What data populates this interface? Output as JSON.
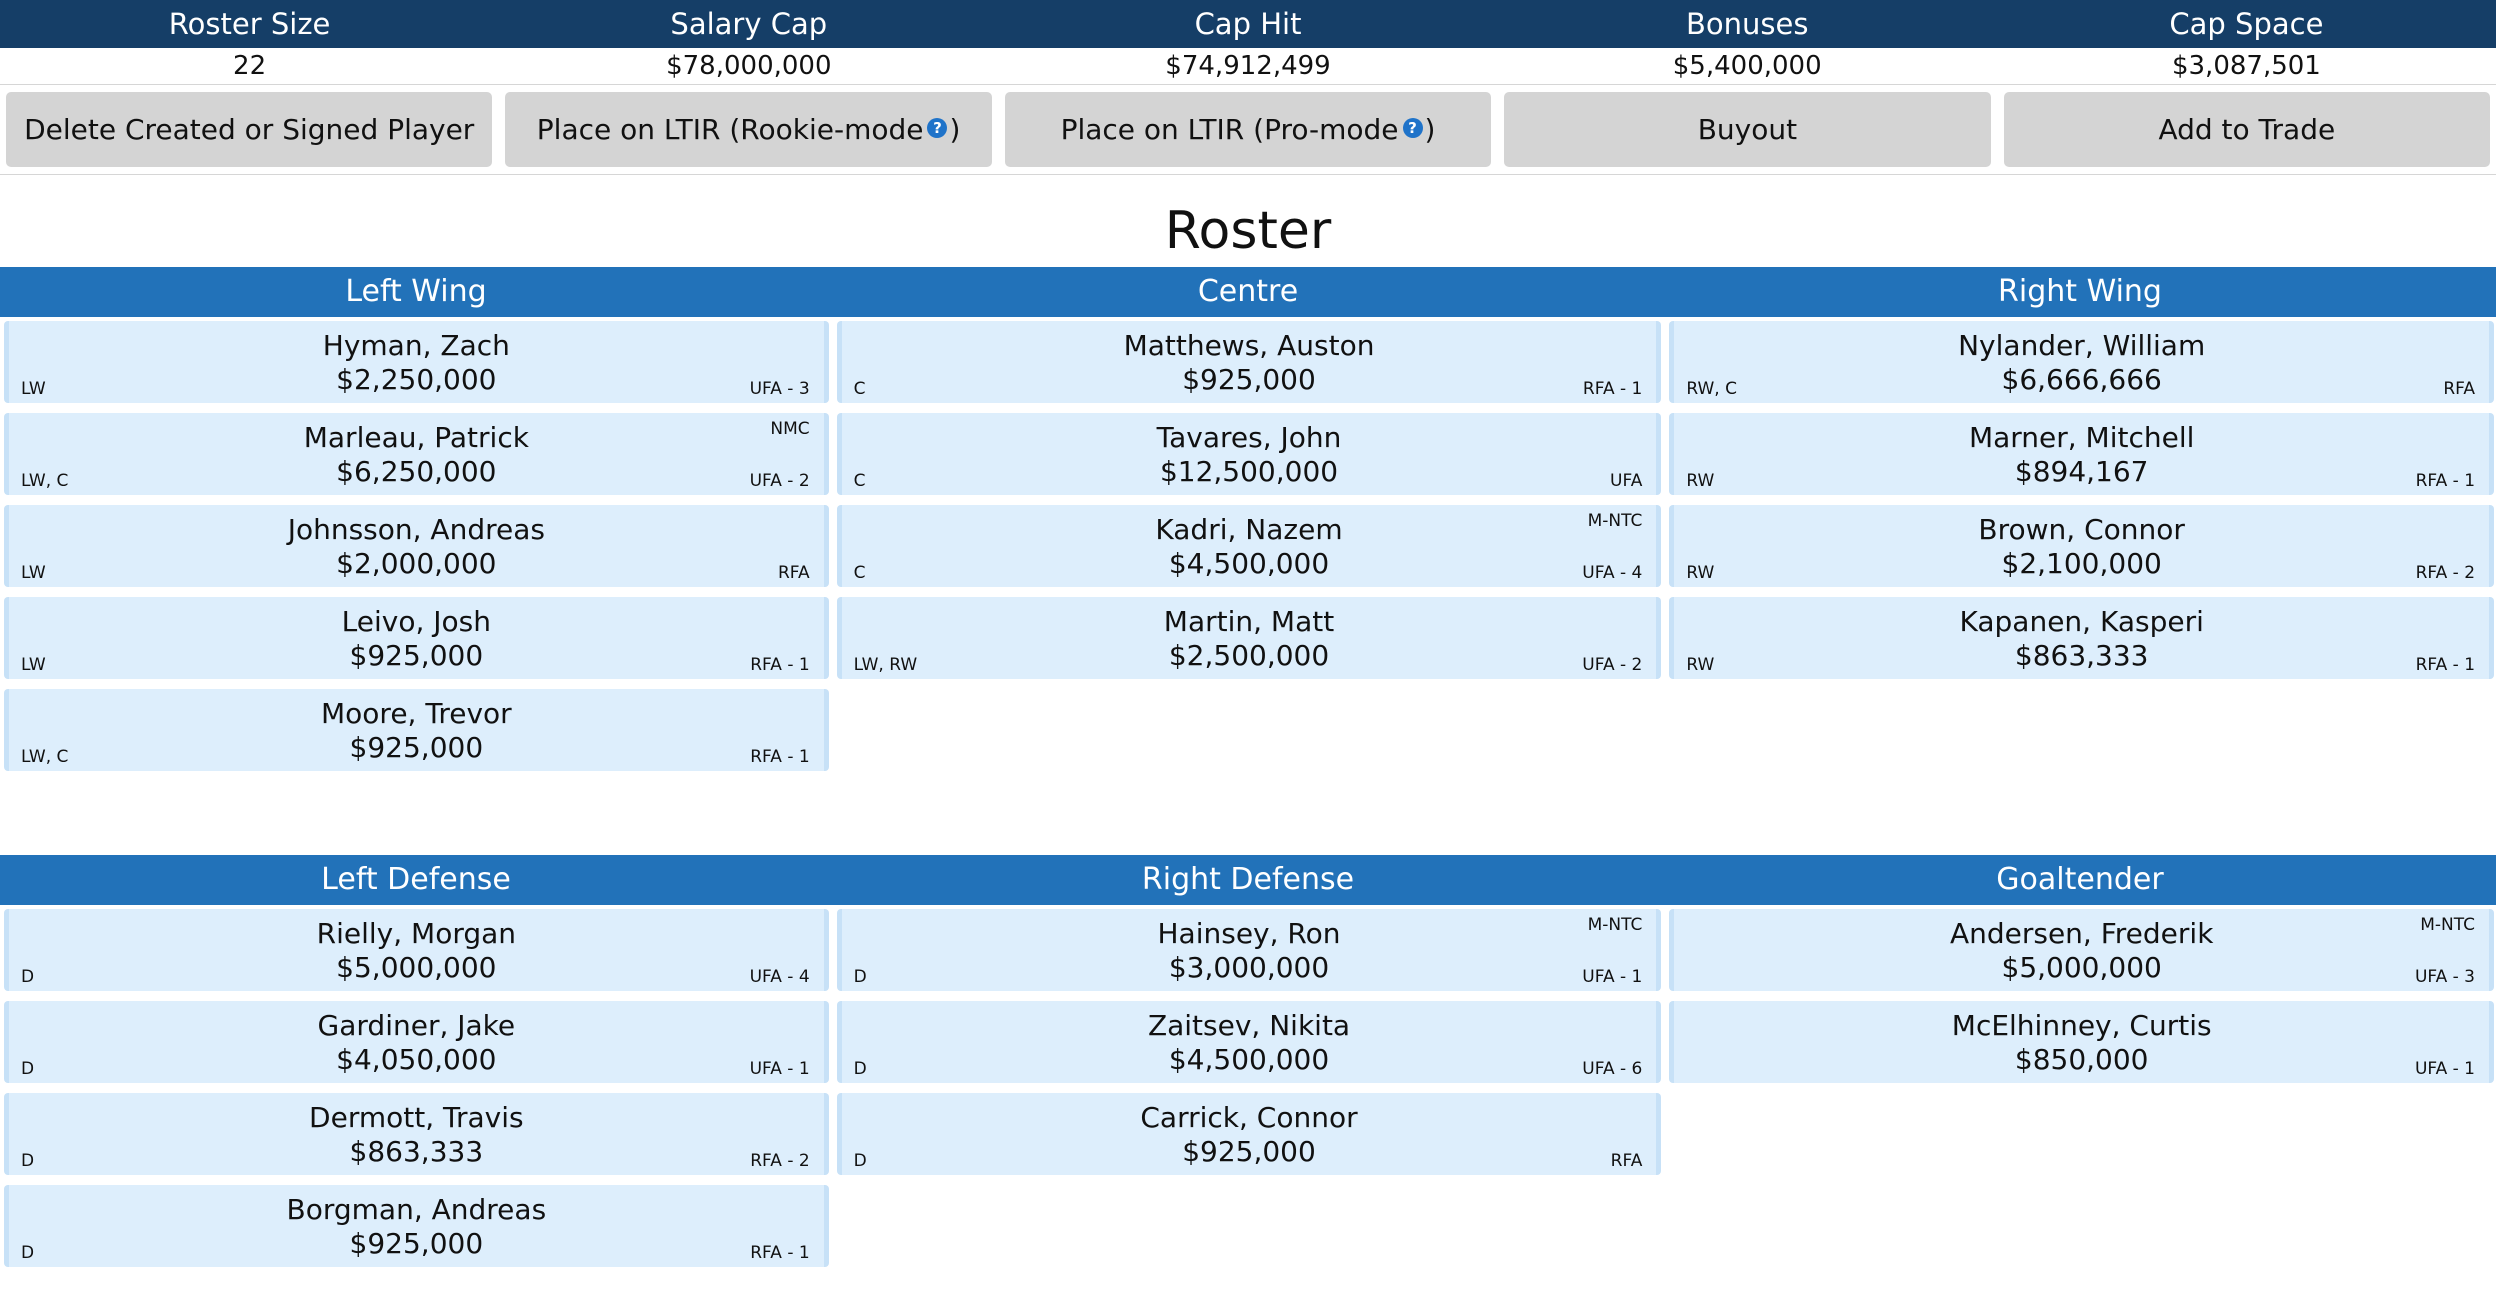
{
  "summary": {
    "headers": [
      "Roster Size",
      "Salary Cap",
      "Cap Hit",
      "Bonuses",
      "Cap Space"
    ],
    "values": [
      "22",
      "$78,000,000",
      "$74,912,499",
      "$5,400,000",
      "$3,087,501"
    ]
  },
  "actions": {
    "delete": "Delete Created or Signed Player",
    "ltir_rookie_a": "Place on LTIR (Rookie-mode ",
    "ltir_rookie_b": ")",
    "ltir_pro_a": "Place on LTIR (Pro-mode ",
    "ltir_pro_b": ")",
    "help_glyph": "?",
    "buyout": "Buyout",
    "add_trade": "Add to Trade"
  },
  "roster_title": "Roster",
  "forwards": {
    "titles": [
      "Left Wing",
      "Centre",
      "Right Wing"
    ],
    "left_wing": [
      {
        "name": "Hyman, Zach",
        "salary": "$2,250,000",
        "pos": "LW",
        "status": "UFA - 3",
        "clause": ""
      },
      {
        "name": "Marleau, Patrick",
        "salary": "$6,250,000",
        "pos": "LW, C",
        "status": "UFA - 2",
        "clause": "NMC"
      },
      {
        "name": "Johnsson, Andreas",
        "salary": "$2,000,000",
        "pos": "LW",
        "status": "RFA",
        "clause": ""
      },
      {
        "name": "Leivo, Josh",
        "salary": "$925,000",
        "pos": "LW",
        "status": "RFA - 1",
        "clause": ""
      },
      {
        "name": "Moore, Trevor",
        "salary": "$925,000",
        "pos": "LW, C",
        "status": "RFA - 1",
        "clause": ""
      }
    ],
    "centre": [
      {
        "name": "Matthews, Auston",
        "salary": "$925,000",
        "pos": "C",
        "status": "RFA - 1",
        "clause": ""
      },
      {
        "name": "Tavares, John",
        "salary": "$12,500,000",
        "pos": "C",
        "status": "UFA",
        "clause": ""
      },
      {
        "name": "Kadri, Nazem",
        "salary": "$4,500,000",
        "pos": "C",
        "status": "UFA - 4",
        "clause": "M-NTC"
      },
      {
        "name": "Martin, Matt",
        "salary": "$2,500,000",
        "pos": "LW, RW",
        "status": "UFA - 2",
        "clause": ""
      }
    ],
    "right_wing": [
      {
        "name": "Nylander, William",
        "salary": "$6,666,666",
        "pos": "RW, C",
        "status": "RFA",
        "clause": ""
      },
      {
        "name": "Marner, Mitchell",
        "salary": "$894,167",
        "pos": "RW",
        "status": "RFA - 1",
        "clause": ""
      },
      {
        "name": "Brown, Connor",
        "salary": "$2,100,000",
        "pos": "RW",
        "status": "RFA - 2",
        "clause": ""
      },
      {
        "name": "Kapanen, Kasperi",
        "salary": "$863,333",
        "pos": "RW",
        "status": "RFA - 1",
        "clause": ""
      }
    ]
  },
  "defense": {
    "titles": [
      "Left Defense",
      "Right Defense",
      "Goaltender"
    ],
    "left_defense": [
      {
        "name": "Rielly, Morgan",
        "salary": "$5,000,000",
        "pos": "D",
        "status": "UFA - 4",
        "clause": ""
      },
      {
        "name": "Gardiner, Jake",
        "salary": "$4,050,000",
        "pos": "D",
        "status": "UFA - 1",
        "clause": ""
      },
      {
        "name": "Dermott, Travis",
        "salary": "$863,333",
        "pos": "D",
        "status": "RFA - 2",
        "clause": ""
      },
      {
        "name": "Borgman, Andreas",
        "salary": "$925,000",
        "pos": "D",
        "status": "RFA - 1",
        "clause": ""
      }
    ],
    "right_defense": [
      {
        "name": "Hainsey, Ron",
        "salary": "$3,000,000",
        "pos": "D",
        "status": "UFA - 1",
        "clause": "M-NTC"
      },
      {
        "name": "Zaitsev, Nikita",
        "salary": "$4,500,000",
        "pos": "D",
        "status": "UFA - 6",
        "clause": ""
      },
      {
        "name": "Carrick, Connor",
        "salary": "$925,000",
        "pos": "D",
        "status": "RFA",
        "clause": ""
      }
    ],
    "goaltender": [
      {
        "name": "Andersen, Frederik",
        "salary": "$5,000,000",
        "pos": "",
        "status": "UFA - 3",
        "clause": "M-NTC"
      },
      {
        "name": "McElhinney, Curtis",
        "salary": "$850,000",
        "pos": "",
        "status": "UFA - 1",
        "clause": ""
      }
    ]
  }
}
